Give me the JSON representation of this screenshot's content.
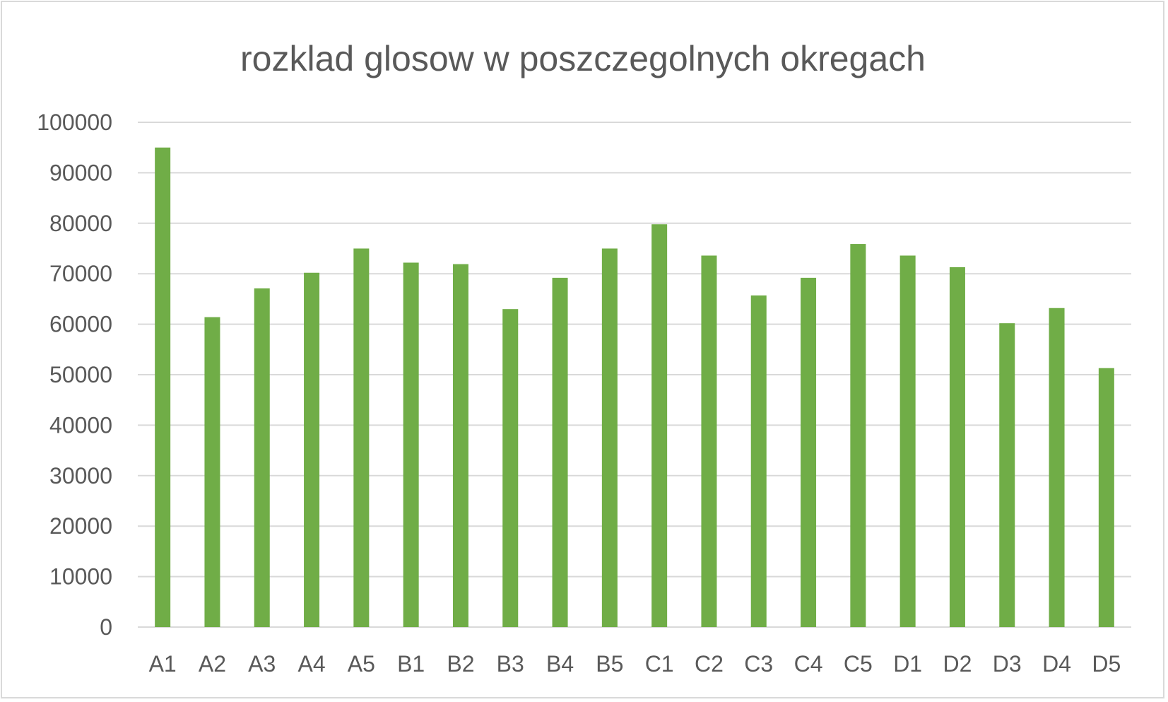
{
  "chart_data": {
    "type": "bar",
    "title": "rozklad glosow w poszczegolnych okregach",
    "xlabel": "",
    "ylabel": "",
    "categories": [
      "A1",
      "A2",
      "A3",
      "A4",
      "A5",
      "B1",
      "B2",
      "B3",
      "B4",
      "B5",
      "C1",
      "C2",
      "C3",
      "C4",
      "C5",
      "D1",
      "D2",
      "D3",
      "D4",
      "D5"
    ],
    "values": [
      95000,
      61400,
      67100,
      70200,
      75000,
      72200,
      71900,
      63000,
      69200,
      75000,
      79800,
      73600,
      65700,
      69200,
      75900,
      73600,
      71300,
      60200,
      63200,
      51300
    ],
    "ylim": [
      0,
      100000
    ],
    "yticks": [
      "0",
      "10000",
      "20000",
      "30000",
      "40000",
      "50000",
      "60000",
      "70000",
      "80000",
      "90000",
      "100000"
    ],
    "grid": true,
    "legend": "none",
    "bar_color": "#70ad47"
  }
}
